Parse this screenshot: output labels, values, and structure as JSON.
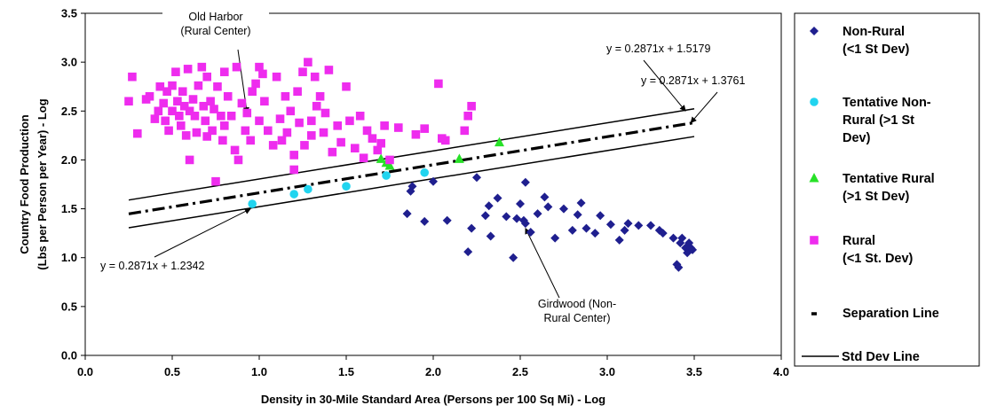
{
  "chart_data": {
    "type": "scatter",
    "xlabel": "Density in 30-Mile Standard Area (Persons per 100 Sq Mi) - Log",
    "ylabel_lines": [
      "Country Food Production",
      "(Lbs per Person per Year) - Log"
    ],
    "xlim": [
      0.0,
      4.0
    ],
    "ylim": [
      0.0,
      3.5
    ],
    "x_ticks": [
      "0.0",
      "0.5",
      "1.0",
      "1.5",
      "2.0",
      "2.5",
      "3.0",
      "3.5",
      "4.0"
    ],
    "y_ticks": [
      "0.0",
      "0.5",
      "1.0",
      "1.5",
      "2.0",
      "2.5",
      "3.0",
      "3.5"
    ],
    "grid": false,
    "legend_position": "right",
    "series": [
      {
        "name_lines": [
          "Non-Rural",
          "(<1 St Dev)"
        ],
        "marker": "diamond",
        "color": "#1f1f8f",
        "points": [
          [
            1.85,
            1.45
          ],
          [
            1.87,
            1.68
          ],
          [
            1.88,
            1.73
          ],
          [
            1.95,
            1.37
          ],
          [
            2.0,
            1.78
          ],
          [
            2.08,
            1.38
          ],
          [
            2.2,
            1.06
          ],
          [
            2.22,
            1.3
          ],
          [
            2.25,
            1.82
          ],
          [
            2.3,
            1.43
          ],
          [
            2.32,
            1.53
          ],
          [
            2.33,
            1.22
          ],
          [
            2.37,
            1.61
          ],
          [
            2.42,
            1.42
          ],
          [
            2.46,
            1.0
          ],
          [
            2.48,
            1.4
          ],
          [
            2.5,
            1.55
          ],
          [
            2.52,
            1.38
          ],
          [
            2.53,
            1.77
          ],
          [
            2.53,
            1.35
          ],
          [
            2.56,
            1.26
          ],
          [
            2.6,
            1.45
          ],
          [
            2.64,
            1.62
          ],
          [
            2.66,
            1.52
          ],
          [
            2.7,
            1.2
          ],
          [
            2.75,
            1.5
          ],
          [
            2.8,
            1.28
          ],
          [
            2.83,
            1.44
          ],
          [
            2.85,
            1.56
          ],
          [
            2.88,
            1.3
          ],
          [
            2.93,
            1.25
          ],
          [
            2.96,
            1.43
          ],
          [
            3.02,
            1.34
          ],
          [
            3.07,
            1.18
          ],
          [
            3.1,
            1.28
          ],
          [
            3.12,
            1.35
          ],
          [
            3.18,
            1.33
          ],
          [
            3.25,
            1.33
          ],
          [
            3.3,
            1.28
          ],
          [
            3.32,
            1.25
          ],
          [
            3.38,
            1.2
          ],
          [
            3.4,
            0.93
          ],
          [
            3.41,
            0.9
          ],
          [
            3.42,
            1.15
          ],
          [
            3.43,
            1.2
          ],
          [
            3.45,
            1.1
          ],
          [
            3.46,
            1.05
          ],
          [
            3.47,
            1.15
          ],
          [
            3.48,
            1.1
          ],
          [
            3.49,
            1.08
          ]
        ]
      },
      {
        "name_lines": [
          "Tentative Non-",
          "Rural (>1 St",
          "Dev)"
        ],
        "marker": "circle",
        "color": "#21d4ef",
        "points": [
          [
            0.96,
            1.55
          ],
          [
            1.2,
            1.65
          ],
          [
            1.28,
            1.7
          ],
          [
            1.5,
            1.73
          ],
          [
            1.73,
            1.84
          ],
          [
            1.95,
            1.87
          ]
        ]
      },
      {
        "name_lines": [
          "Tentative Rural",
          "(>1 St Dev)"
        ],
        "marker": "triangle",
        "color": "#27e127",
        "points": [
          [
            1.7,
            2.01
          ],
          [
            1.73,
            1.97
          ],
          [
            1.75,
            1.94
          ],
          [
            2.15,
            2.01
          ],
          [
            2.38,
            2.18
          ]
        ]
      },
      {
        "name_lines": [
          "Rural",
          "(<1 St. Dev)"
        ],
        "marker": "square",
        "color": "#ee2cee",
        "points": [
          [
            0.25,
            2.6
          ],
          [
            0.27,
            2.85
          ],
          [
            0.3,
            2.27
          ],
          [
            0.35,
            2.62
          ],
          [
            0.37,
            2.65
          ],
          [
            0.4,
            2.42
          ],
          [
            0.42,
            2.5
          ],
          [
            0.43,
            2.75
          ],
          [
            0.45,
            2.58
          ],
          [
            0.46,
            2.4
          ],
          [
            0.47,
            2.7
          ],
          [
            0.48,
            2.3
          ],
          [
            0.5,
            2.5
          ],
          [
            0.5,
            2.76
          ],
          [
            0.52,
            2.9
          ],
          [
            0.53,
            2.6
          ],
          [
            0.54,
            2.45
          ],
          [
            0.55,
            2.35
          ],
          [
            0.56,
            2.7
          ],
          [
            0.57,
            2.55
          ],
          [
            0.58,
            2.25
          ],
          [
            0.59,
            2.93
          ],
          [
            0.6,
            2.0
          ],
          [
            0.6,
            2.5
          ],
          [
            0.62,
            2.62
          ],
          [
            0.63,
            2.45
          ],
          [
            0.64,
            2.28
          ],
          [
            0.65,
            2.76
          ],
          [
            0.67,
            2.95
          ],
          [
            0.68,
            2.55
          ],
          [
            0.69,
            2.4
          ],
          [
            0.7,
            2.24
          ],
          [
            0.7,
            2.85
          ],
          [
            0.72,
            2.6
          ],
          [
            0.73,
            2.3
          ],
          [
            0.74,
            2.52
          ],
          [
            0.75,
            1.78
          ],
          [
            0.76,
            2.75
          ],
          [
            0.78,
            2.45
          ],
          [
            0.79,
            2.2
          ],
          [
            0.8,
            2.35
          ],
          [
            0.8,
            2.9
          ],
          [
            0.82,
            2.65
          ],
          [
            0.84,
            2.45
          ],
          [
            0.86,
            2.1
          ],
          [
            0.87,
            2.95
          ],
          [
            0.88,
            2.0
          ],
          [
            0.9,
            2.58
          ],
          [
            0.92,
            2.3
          ],
          [
            0.93,
            2.48
          ],
          [
            0.95,
            2.2
          ],
          [
            0.96,
            2.7
          ],
          [
            0.98,
            2.78
          ],
          [
            1.0,
            2.4
          ],
          [
            1.0,
            2.95
          ],
          [
            1.02,
            2.88
          ],
          [
            1.03,
            2.6
          ],
          [
            1.05,
            2.3
          ],
          [
            1.08,
            2.15
          ],
          [
            1.1,
            2.85
          ],
          [
            1.12,
            2.42
          ],
          [
            1.13,
            2.2
          ],
          [
            1.15,
            2.65
          ],
          [
            1.16,
            2.28
          ],
          [
            1.18,
            2.5
          ],
          [
            1.2,
            2.05
          ],
          [
            1.2,
            1.9
          ],
          [
            1.22,
            2.7
          ],
          [
            1.23,
            2.38
          ],
          [
            1.25,
            2.9
          ],
          [
            1.26,
            2.15
          ],
          [
            1.28,
            3.0
          ],
          [
            1.3,
            2.4
          ],
          [
            1.3,
            2.25
          ],
          [
            1.32,
            2.85
          ],
          [
            1.33,
            2.55
          ],
          [
            1.35,
            2.65
          ],
          [
            1.37,
            2.28
          ],
          [
            1.38,
            2.48
          ],
          [
            1.4,
            2.92
          ],
          [
            1.42,
            2.08
          ],
          [
            1.45,
            2.35
          ],
          [
            1.47,
            2.18
          ],
          [
            1.5,
            2.75
          ],
          [
            1.52,
            2.4
          ],
          [
            1.55,
            2.12
          ],
          [
            1.58,
            2.45
          ],
          [
            1.6,
            2.02
          ],
          [
            1.62,
            2.3
          ],
          [
            1.65,
            2.22
          ],
          [
            1.68,
            2.1
          ],
          [
            1.7,
            2.17
          ],
          [
            1.72,
            2.35
          ],
          [
            1.75,
            2.0
          ],
          [
            1.8,
            2.33
          ],
          [
            1.9,
            2.26
          ],
          [
            1.95,
            2.32
          ],
          [
            2.03,
            2.78
          ],
          [
            2.05,
            2.22
          ],
          [
            2.07,
            2.2
          ],
          [
            2.18,
            2.3
          ],
          [
            2.2,
            2.45
          ],
          [
            2.22,
            2.55
          ]
        ]
      },
      {
        "name_lines": [
          "Separation Line"
        ],
        "marker": "dash-line",
        "color": "#000000",
        "slope": 0.2871,
        "intercept": 1.3761,
        "x_range": [
          0.25,
          3.5
        ]
      },
      {
        "name_lines": [
          "Std Dev Line"
        ],
        "marker": "solid-line",
        "color": "#000000",
        "lines": [
          {
            "slope": 0.2871,
            "intercept": 1.5179,
            "x_range": [
              0.25,
              3.5
            ]
          },
          {
            "slope": 0.2871,
            "intercept": 1.2342,
            "x_range": [
              0.25,
              3.5
            ]
          }
        ]
      }
    ],
    "annotations": [
      {
        "lines": [
          "Old Harbor",
          "(Rural Center)"
        ],
        "target": [
          0.93,
          2.48
        ]
      },
      {
        "lines": [
          "y = 0.2871x + 1.5179"
        ],
        "target": [
          3.45,
          2.5
        ]
      },
      {
        "lines": [
          "y = 0.2871x + 1.3761"
        ],
        "target": [
          3.48,
          2.38
        ]
      },
      {
        "lines": [
          "y = 0.2871x + 1.2342"
        ],
        "target": [
          0.95,
          1.5
        ]
      },
      {
        "lines": [
          "Girdwood (Non-",
          "Rural Center)"
        ],
        "target": [
          2.53,
          1.3
        ]
      }
    ]
  }
}
